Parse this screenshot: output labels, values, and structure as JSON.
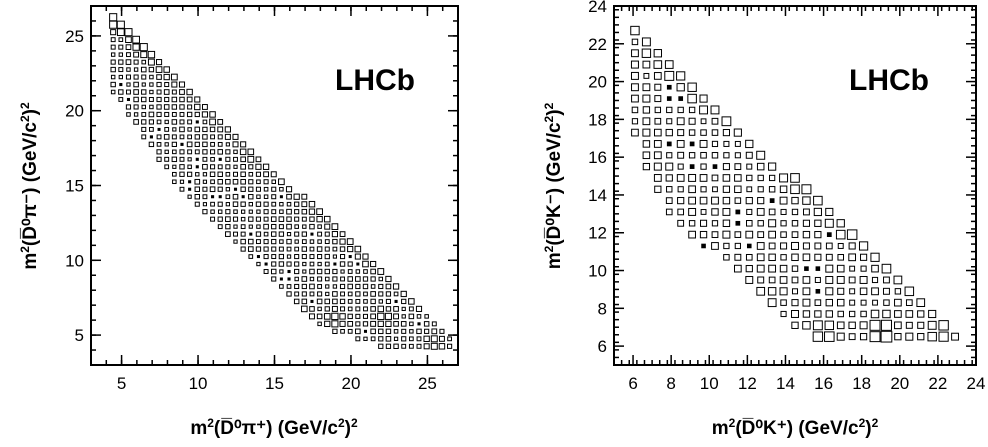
{
  "chart_data": [
    {
      "type": "heatmap",
      "style": "box",
      "annotation": "LHCb",
      "xlabel": {
        "prefix": "m",
        "sup": "2",
        "particles": "(D̅⁰π⁺)",
        "unit": "(GeV/c",
        "unit_sup": "2",
        "unit_close": ")",
        "unit_power": "2"
      },
      "ylabel": {
        "prefix": "m",
        "sup": "2",
        "particles": "(D̅⁰π⁻)",
        "unit": "(GeV/c",
        "unit_sup": "2",
        "unit_close": ")",
        "unit_power": "2"
      },
      "xlim": [
        3,
        27
      ],
      "ylim": [
        3,
        27
      ],
      "xticks": [
        5,
        10,
        15,
        20,
        25
      ],
      "yticks": [
        5,
        10,
        15,
        20,
        25
      ],
      "bin_size": [
        0.5,
        0.5
      ],
      "band": {
        "upper": [
          [
            4.2,
            26.5
          ],
          [
            26.8,
            4.8
          ]
        ],
        "lower": [
          [
            4.2,
            21.5
          ],
          [
            9,
            14.2
          ],
          [
            18,
            5.5
          ],
          [
            22,
            4.2
          ],
          [
            26.8,
            4.2
          ]
        ]
      },
      "peaks": [
        {
          "x": 4.5,
          "y": 26,
          "weight": 0.65
        },
        {
          "x": 5.5,
          "y": 25.5,
          "weight": 0.7
        },
        {
          "x": 6.5,
          "y": 24.3,
          "weight": 0.6
        },
        {
          "x": 16.5,
          "y": 6.2,
          "weight": 1.0
        },
        {
          "x": 19,
          "y": 6.2,
          "weight": 0.55
        },
        {
          "x": 22,
          "y": 6.2,
          "weight": 0.55
        },
        {
          "x": 25.5,
          "y": 4.5,
          "weight": 0.6
        }
      ]
    },
    {
      "type": "heatmap",
      "style": "box",
      "annotation": "LHCb",
      "xlabel": {
        "prefix": "m",
        "sup": "2",
        "particles": "(D̅⁰K⁺)",
        "unit": "(GeV/c",
        "unit_sup": "2",
        "unit_close": ")",
        "unit_power": "2"
      },
      "ylabel": {
        "prefix": "m",
        "sup": "2",
        "particles": "(D̅⁰K⁻)",
        "unit": "(GeV/c",
        "unit_sup": "2",
        "unit_close": ")",
        "unit_power": "2"
      },
      "xlim": [
        5,
        24
      ],
      "ylim": [
        5,
        24
      ],
      "xticks": [
        6,
        8,
        10,
        12,
        14,
        16,
        18,
        20,
        22,
        24
      ],
      "yticks": [
        6,
        8,
        10,
        12,
        14,
        16,
        18,
        20,
        22,
        24
      ],
      "bin_size": [
        0.6,
        0.6
      ],
      "band": {
        "upper": [
          [
            5.8,
            23.2
          ],
          [
            23.2,
            6.6
          ]
        ],
        "lower": [
          [
            5.8,
            17.5
          ],
          [
            7.5,
            13.2
          ],
          [
            12.5,
            8.8
          ],
          [
            15.5,
            6.2
          ],
          [
            23.2,
            5.9
          ]
        ]
      },
      "peaks": [
        {
          "x": 9,
          "y": 21.2,
          "weight": 0.8
        },
        {
          "x": 11.4,
          "y": 19.1,
          "weight": 0.65
        },
        {
          "x": 15.9,
          "y": 15.2,
          "weight": 0.7
        },
        {
          "x": 18.3,
          "y": 12.2,
          "weight": 0.75
        },
        {
          "x": 19,
          "y": 6.8,
          "weight": 0.85
        },
        {
          "x": 16,
          "y": 6.8,
          "weight": 0.55
        },
        {
          "x": 22,
          "y": 6.8,
          "weight": 0.5
        },
        {
          "x": 12.8,
          "y": 8.3,
          "weight": 0.5
        }
      ]
    }
  ]
}
